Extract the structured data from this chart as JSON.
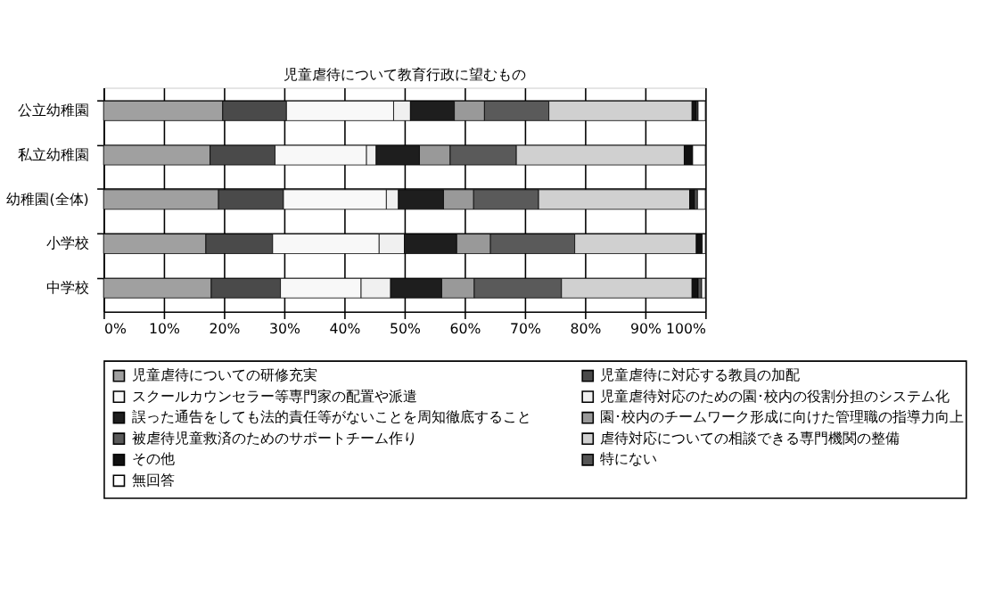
{
  "chart_data": {
    "type": "bar",
    "orientation": "horizontal",
    "stacked": true,
    "title": "児童虐待について教育行政に望むもの",
    "categories": [
      "公立幼稚園",
      "私立幼稚園",
      "幼稚園(全体)",
      "小学校",
      "中学校"
    ],
    "series": [
      {
        "name": "児童虐待についての研修充実",
        "color": "#a0a0a0",
        "values": [
          19.8,
          17.7,
          19.1,
          17.0,
          17.9
        ]
      },
      {
        "name": "児童虐待に対応する教員の加配",
        "color": "#4a4a4a",
        "values": [
          10.6,
          10.8,
          10.8,
          11.1,
          11.5
        ]
      },
      {
        "name": "スクールカウンセラー等専門家の配置や派遣",
        "color": "#f8f8f8",
        "values": [
          17.8,
          15.2,
          17.1,
          17.7,
          13.4
        ]
      },
      {
        "name": "児童虐待対応のための園･校内の役割分担のシステム化",
        "color": "#f0f0f0",
        "values": [
          2.8,
          1.6,
          2.0,
          4.2,
          4.9
        ]
      },
      {
        "name": "誤った通告をしても法的責任等がないことを周知徹底すること",
        "color": "#1e1e1e",
        "values": [
          7.3,
          7.2,
          7.5,
          8.7,
          8.5
        ]
      },
      {
        "name": "園･校内のチームワーク形成に向けた管理職の指導力向上",
        "color": "#999999",
        "values": [
          5.0,
          5.1,
          5.0,
          5.6,
          5.4
        ]
      },
      {
        "name": "被虐待児童救済のためのサポートチーム作り",
        "color": "#5a5a5a",
        "values": [
          10.7,
          11.0,
          10.8,
          14.0,
          14.5
        ]
      },
      {
        "name": "虐待対応についての相談できる専門機関の整備",
        "color": "#d0d0d0",
        "values": [
          23.8,
          27.9,
          25.1,
          20.2,
          21.7
        ]
      },
      {
        "name": "その他",
        "color": "#111111",
        "values": [
          0.7,
          1.4,
          0.8,
          1.0,
          1.0
        ]
      },
      {
        "name": "特にない",
        "color": "#555555",
        "values": [
          0.3,
          null,
          0.5,
          null,
          0.6
        ]
      },
      {
        "name": "無回答",
        "color": "#ffffff",
        "values": [
          1.2,
          2.1,
          1.3,
          0.5,
          0.6
        ]
      }
    ],
    "xlim": [
      0,
      100
    ],
    "xticks": [
      {
        "value": 0,
        "label": "0%"
      },
      {
        "value": 10,
        "label": "10%"
      },
      {
        "value": 20,
        "label": "20%"
      },
      {
        "value": 30,
        "label": "30%"
      },
      {
        "value": 40,
        "label": "40%"
      },
      {
        "value": 50,
        "label": "50%"
      },
      {
        "value": 60,
        "label": "60%"
      },
      {
        "value": 70,
        "label": "70%"
      },
      {
        "value": 80,
        "label": "80%"
      },
      {
        "value": 90,
        "label": "90%"
      },
      {
        "value": 100,
        "label": "100%"
      }
    ],
    "grid": true,
    "legend": "bottom"
  }
}
